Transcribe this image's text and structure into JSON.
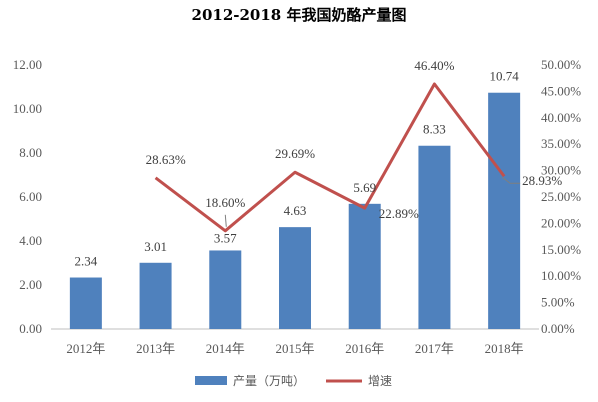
{
  "chart_data": {
    "type": "bar",
    "title": "2012-2018 年我国奶酪产量图",
    "categories": [
      "2012年",
      "2013年",
      "2014年",
      "2015年",
      "2016年",
      "2017年",
      "2018年"
    ],
    "series": [
      {
        "name": "产量（万吨）",
        "kind": "bar",
        "axis": "left",
        "values": [
          2.34,
          3.01,
          3.57,
          4.63,
          5.69,
          8.33,
          10.74
        ],
        "labels": [
          "2.34",
          "3.01",
          "3.57",
          "4.63",
          "5.69",
          "8.33",
          "10.74"
        ],
        "color": "#4F81BD"
      },
      {
        "name": "增速",
        "kind": "line",
        "axis": "right",
        "values": [
          null,
          28.63,
          18.6,
          29.69,
          22.89,
          46.4,
          28.93
        ],
        "labels": [
          "",
          "28.63%",
          "18.60%",
          "29.69%",
          "22.89%",
          "46.40%",
          "28.93%"
        ],
        "color": "#C0504D"
      }
    ],
    "y_left": {
      "range": [
        0,
        12
      ],
      "ticks": [
        "0.00",
        "2.00",
        "4.00",
        "6.00",
        "8.00",
        "10.00",
        "12.00"
      ]
    },
    "y_right": {
      "range": [
        0,
        50
      ],
      "ticks": [
        "0.00%",
        "5.00%",
        "10.00%",
        "15.00%",
        "20.00%",
        "25.00%",
        "30.00%",
        "35.00%",
        "40.00%",
        "45.00%",
        "50.00%"
      ]
    },
    "grid": false,
    "legend": "bottom-center"
  }
}
